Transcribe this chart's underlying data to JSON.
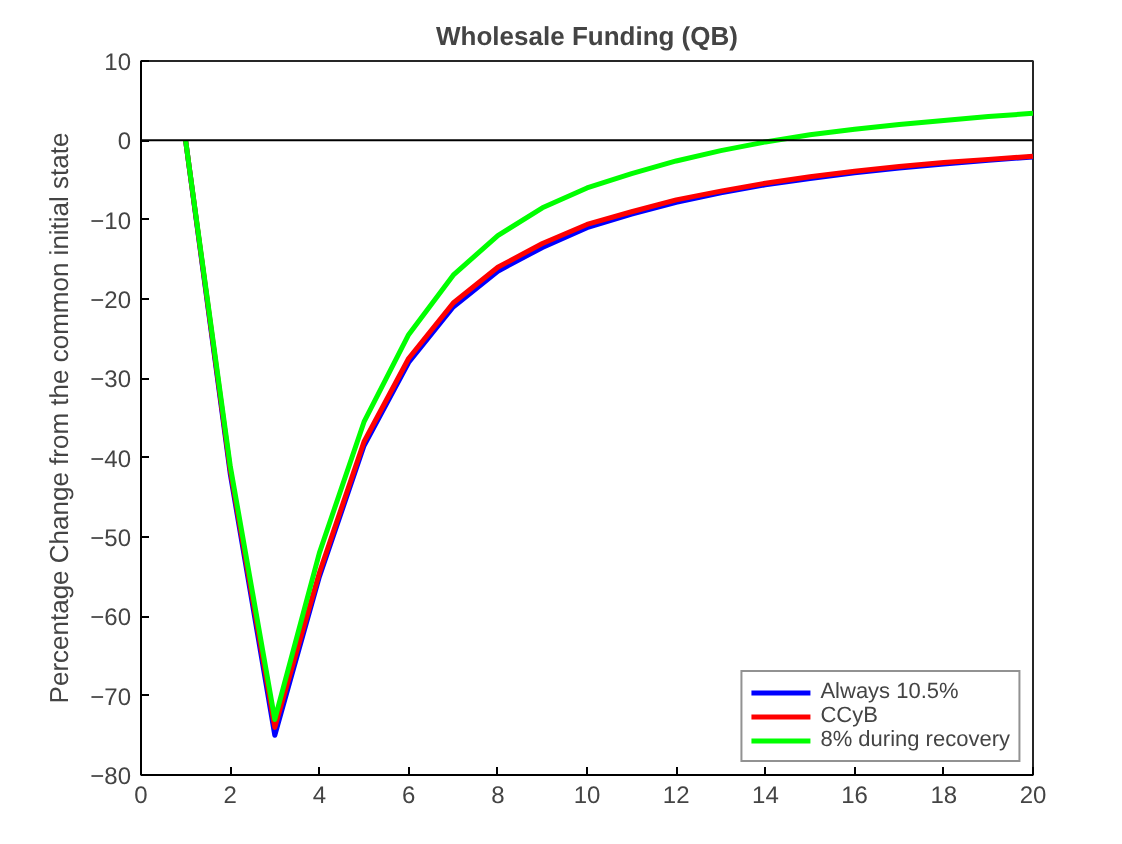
{
  "chart_data": {
    "type": "line",
    "title": "Wholesale Funding (QB)",
    "ylabel": "Percentage Change from the common initial state",
    "x": [
      1,
      2,
      3,
      4,
      5,
      6,
      7,
      8,
      9,
      10,
      11,
      12,
      13,
      14,
      15,
      16,
      17,
      18,
      19,
      20
    ],
    "series": [
      {
        "name": "Always 10.5%",
        "color": "#0000ff",
        "values": [
          0,
          -42,
          -75,
          -55,
          -38.5,
          -28,
          -21,
          -16.5,
          -13.5,
          -11,
          -9.3,
          -7.8,
          -6.6,
          -5.6,
          -4.8,
          -4.1,
          -3.5,
          -3.0,
          -2.5,
          -2.1
        ]
      },
      {
        "name": "CCyB",
        "color": "#ff0000",
        "values": [
          0,
          -41.5,
          -74,
          -54.5,
          -38,
          -27.5,
          -20.5,
          -16,
          -13,
          -10.6,
          -9,
          -7.5,
          -6.4,
          -5.4,
          -4.6,
          -3.9,
          -3.3,
          -2.8,
          -2.4,
          -2.0
        ]
      },
      {
        "name": "8% during recovery",
        "color": "#00ff00",
        "values": [
          0,
          -41,
          -73,
          -52,
          -35.5,
          -24.5,
          -17,
          -12,
          -8.5,
          -6,
          -4.2,
          -2.6,
          -1.3,
          -0.2,
          0.7,
          1.4,
          2.0,
          2.5,
          3.0,
          3.4
        ]
      }
    ],
    "xlim": [
      0,
      20
    ],
    "ylim": [
      -80,
      10
    ],
    "xticks": [
      0,
      2,
      4,
      6,
      8,
      10,
      12,
      14,
      16,
      18,
      20
    ],
    "yticks": [
      -80,
      -70,
      -60,
      -50,
      -40,
      -30,
      -20,
      -10,
      0,
      10
    ],
    "ref_lines": [
      {
        "axis": "y",
        "value": 0,
        "color": "#000000"
      }
    ],
    "grid": false,
    "legend": "bottom right",
    "line_style": "solid"
  }
}
